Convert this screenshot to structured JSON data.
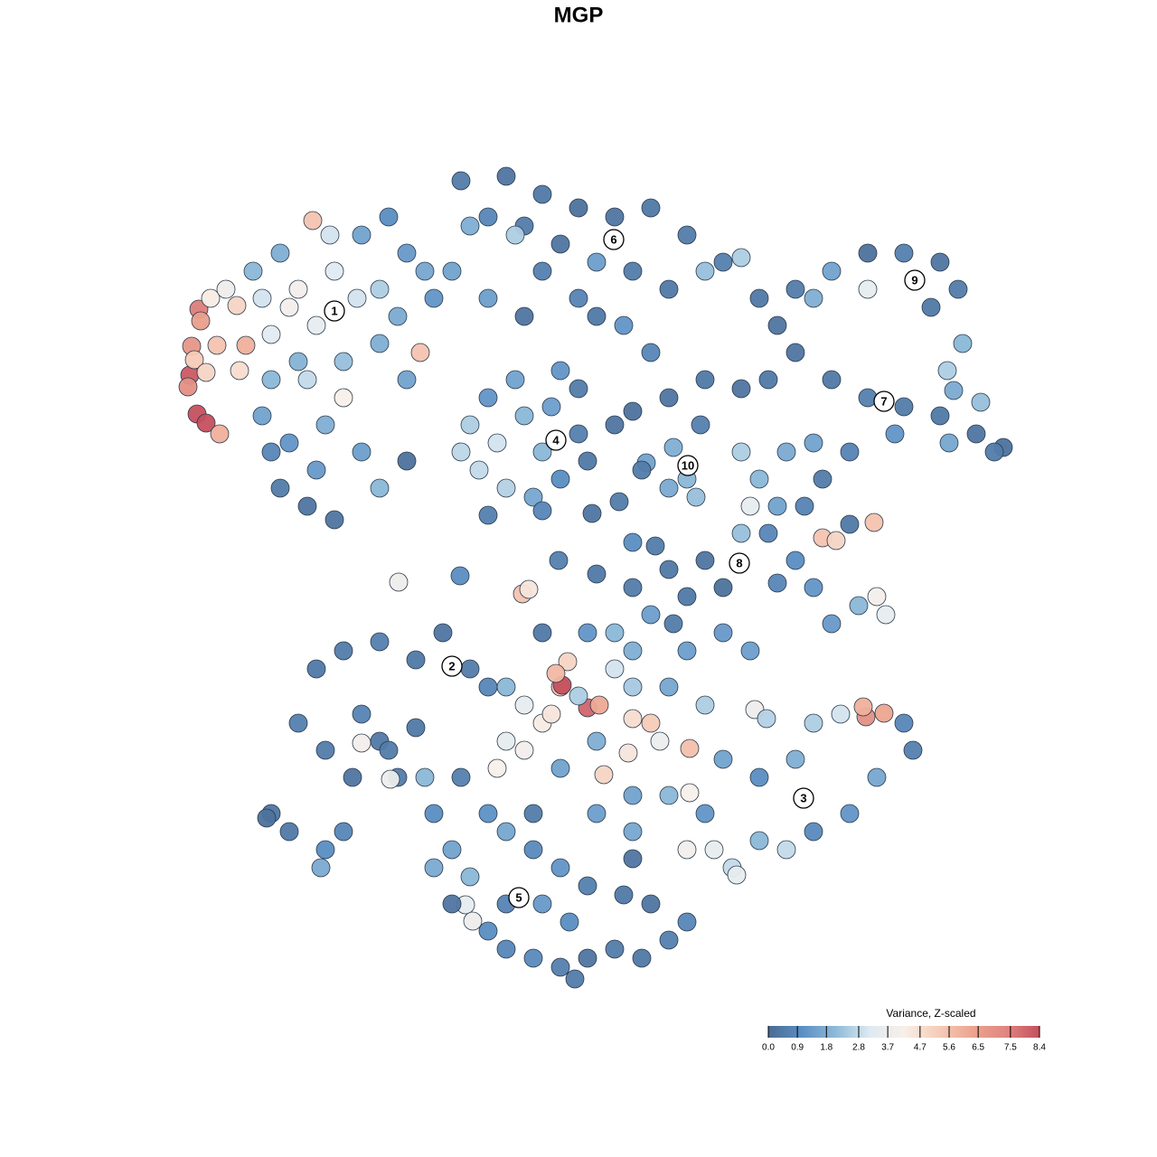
{
  "chart_data": {
    "type": "scatter",
    "title": "MGP",
    "xlim": [
      0,
      128
    ],
    "ylim": [
      0,
      128
    ],
    "colorbar_title": "Variance, Z-scaled",
    "clim": [
      0,
      8.4
    ],
    "colorscale": [
      "#4a6b93",
      "#5b8fc4",
      "#8fbbd9",
      "#dfeaf2",
      "#f8efe9",
      "#f6cdb9",
      "#eca58f",
      "#e08680",
      "#c5505e"
    ],
    "colorbar_ticks": [
      {
        "value": 0,
        "label": "0.0"
      },
      0.9,
      1.8,
      2.8,
      3.7,
      4.7,
      5.6,
      6.5,
      7.5,
      8.4
    ],
    "series": [
      {
        "x": [
          22,
          21.2,
          21,
          20.8,
          21.8,
          22.8,
          24.3,
          22.2,
          24,
          21.5,
          22.8,
          26.5,
          27.2,
          26.2,
          23.3,
          25,
          34.6,
          46.5,
          33,
          37,
          35,
          32,
          30,
          38,
          39.5,
          34,
          29,
          36.5,
          42,
          28,
          31,
          40,
          43,
          45,
          47,
          42,
          45,
          30,
          29,
          32,
          36,
          40,
          42,
          35,
          31,
          34,
          37,
          33,
          38,
          44,
          48,
          50,
          52,
          54,
          30,
          45,
          51,
          56,
          60,
          64,
          68,
          72,
          76,
          80,
          74,
          70,
          66,
          62,
          58,
          54,
          57,
          60,
          64,
          69,
          72,
          78,
          82,
          84,
          86,
          58,
          66,
          88,
          92,
          96,
          100,
          104,
          106,
          103,
          96,
          106.5,
          104.8,
          90,
          88,
          92,
          96,
          100,
          104,
          108,
          111,
          110,
          105,
          99,
          94,
          90,
          85,
          82,
          78,
          74,
          70,
          68,
          108.5,
          105.5,
          52,
          55,
          58,
          61,
          64,
          65,
          62,
          59,
          56,
          53,
          51,
          60,
          57,
          54,
          64,
          54,
          60,
          62,
          74.5,
          76,
          77,
          77.5,
          74,
          71.5,
          82,
          84,
          86,
          85,
          88,
          90,
          92,
          95,
          97,
          98,
          91,
          92.5,
          96.7,
          94,
          87,
          91,
          78,
          74,
          70,
          76,
          80,
          89,
          83,
          82,
          86,
          44.1,
          50.9,
          57.8,
          58.5,
          71,
          70,
          72.5,
          65.5,
          68.5,
          66,
          61.8,
          35,
          38,
          42,
          46,
          49,
          52,
          54,
          33,
          36,
          40,
          42,
          44,
          39,
          30,
          32,
          36,
          38,
          35.5,
          43,
          43.2,
          40,
          47,
          46,
          29.5,
          56,
          58,
          60,
          62,
          62.2,
          65,
          66.3,
          62.8,
          61.5,
          56,
          55,
          58,
          61,
          64,
          68,
          70,
          72,
          70,
          69.5,
          73,
          76.3,
          66.8,
          62,
          66,
          74,
          76,
          80,
          83,
          78,
          83.5,
          84.8,
          80,
          84,
          88,
          90,
          93,
          95.8,
          95.5,
          97.8,
          100,
          101,
          97,
          94,
          90,
          87,
          84,
          81,
          79,
          76,
          81.5,
          78,
          74,
          70,
          76.3,
          68,
          72,
          74.5,
          65,
          60,
          70,
          48,
          50,
          52,
          51.5,
          52.3,
          54,
          56,
          59,
          62,
          65,
          68,
          71,
          74,
          76,
          72,
          69,
          65,
          62,
          59,
          56,
          54,
          60,
          63,
          56,
          50,
          48,
          51,
          59,
          66,
          70,
          70,
          63.6
        ],
        "y": [
          93.8,
          89.7,
          86.5,
          85.2,
          82.2,
          81.2,
          80,
          92.5,
          89.8,
          88.2,
          86.8,
          87,
          89.8,
          94.2,
          95,
          96,
          103.6,
          89,
          96,
          98,
          92,
          94,
          91,
          84,
          95,
          86,
          95,
          102,
          96,
          98,
          100,
          102,
          104,
          100,
          98,
          90,
          86,
          86,
          82,
          79,
          81,
          78,
          74,
          76,
          74,
          72,
          70.5,
          88,
          88,
          93,
          95,
          98,
          103,
          95,
          78,
          77,
          108,
          108.5,
          106.5,
          105,
          104,
          105,
          102,
          99,
          96,
          98,
          99,
          101,
          103,
          104,
          102,
          98,
          95,
          92,
          89,
          98,
          99.5,
          95,
          92,
          93,
          93,
          96,
          98,
          96,
          100,
          99,
          96,
          94,
          100,
          90,
          87,
          95,
          89,
          86,
          84,
          83,
          82,
          80,
          78.5,
          78,
          79,
          80,
          78,
          79,
          86,
          85,
          86,
          84,
          82.5,
          81,
          83.5,
          84.8,
          81,
          79,
          82,
          83,
          80,
          77,
          75,
          73,
          74,
          76,
          78,
          78,
          86,
          84,
          85,
          71,
          71.5,
          87,
          78.5,
          75,
          73,
          81,
          74,
          76.8,
          78,
          75,
          72,
          69,
          66,
          63,
          59,
          61,
          62,
          60,
          68.5,
          68.2,
          70.2,
          70,
          78,
          75,
          66,
          65,
          63,
          62,
          63,
          72,
          72,
          69,
          63.5,
          63.6,
          64.3,
          62.3,
          62.8,
          76,
          68,
          67.6,
          71.2,
          72.5,
          64.5,
          66,
          54,
          56,
          57,
          55,
          58,
          54,
          52,
          48,
          45,
          49,
          46,
          42,
          42,
          38,
          36,
          34,
          36,
          32,
          45,
          41.8,
          45.8,
          42,
          47.5,
          37.5,
          52,
          50,
          48,
          52,
          52.2,
          49.7,
          50,
          54.8,
          53.5,
          46,
          43,
          45,
          49,
          51,
          54,
          52,
          48,
          48.5,
          44.7,
          46,
          45.2,
          42.3,
          43,
          46,
          52,
          56,
          58,
          56,
          50,
          49.5,
          48.5,
          44,
          42,
          44,
          48,
          49,
          48.7,
          49.8,
          49.1,
          48,
          45,
          42,
          38,
          36,
          34,
          35,
          32,
          34,
          34,
          31.2,
          38,
          40,
          40,
          40.3,
          58,
          60,
          59,
          58,
          58,
          56,
          38,
          34,
          31,
          27.9,
          26.1,
          25,
          23,
          22,
          21,
          22,
          23,
          22,
          24,
          26,
          28,
          29,
          30,
          32,
          34,
          36,
          38,
          28,
          26,
          28,
          28,
          32,
          42,
          38,
          38,
          36,
          33,
          19.7
        ],
        "values": [
          7.5,
          6.8,
          8.2,
          7,
          8.4,
          8.4,
          6,
          6.5,
          5.5,
          5.3,
          5,
          4.8,
          6,
          5,
          4.3,
          3.8,
          5.5,
          5.5,
          4,
          3.2,
          3.5,
          4,
          3.3,
          4.2,
          3,
          2.8,
          3,
          3,
          2.5,
          2,
          1.8,
          1.5,
          1,
          1.3,
          1.6,
          1.8,
          1.5,
          2,
          1.5,
          1.2,
          1.8,
          1.4,
          2,
          1.3,
          0.5,
          0.3,
          0.3,
          1.9,
          2.2,
          1.7,
          1.2,
          1.5,
          1.8,
          1.4,
          0.8,
          0.2,
          0.5,
          0.3,
          0.4,
          0.2,
          0.3,
          0.4,
          0.5,
          0.6,
          0.4,
          0.5,
          1.4,
          0.3,
          0.5,
          0.8,
          2.5,
          0.6,
          0.7,
          1.2,
          0.8,
          2.2,
          2.5,
          0.4,
          0.3,
          0.3,
          0.4,
          0.5,
          1.5,
          3.5,
          0.6,
          0.3,
          0.5,
          0.4,
          0.2,
          2,
          2.5,
          1.8,
          0.3,
          0.4,
          0.6,
          0.5,
          0.4,
          0.3,
          0.2,
          0.5,
          1.6,
          1.2,
          0.7,
          1.5,
          0.4,
          0.3,
          0.4,
          0.3,
          0.2,
          0.3,
          2.2,
          1.7,
          2.5,
          3,
          2,
          1.4,
          0.6,
          0.4,
          1,
          1.6,
          2.6,
          2.8,
          2.7,
          2,
          1.5,
          1.2,
          0.5,
          0.6,
          0.8,
          1.2,
          1.8,
          2,
          2.2,
          0.6,
          1.7,
          1.5,
          2.5,
          2,
          1.5,
          0.8,
          1,
          1.2,
          1.3,
          2,
          4,
          3.5,
          5.5,
          5,
          5.5,
          0.4,
          1.7,
          0.5,
          0.3,
          0.4,
          0.5,
          0.4,
          0.2,
          0.7,
          3.5,
          2.2,
          0.8,
          3.8,
          1,
          5.5,
          4.5,
          0.5,
          1,
          0.5,
          0.3,
          0.5,
          0.4,
          0.6,
          0.4,
          0.5,
          0.6,
          0.4,
          0.3,
          0.5,
          0.8,
          0.6,
          0.5,
          0.7,
          0.4,
          0.5,
          0.3,
          0.3,
          0.4,
          1,
          0.8,
          1.7,
          0.5,
          3.7,
          4,
          2,
          0.4,
          0.2,
          2,
          3.5,
          4.3,
          5.5,
          8.4,
          8,
          6.2,
          5,
          5.8,
          3.5,
          4.2,
          4,
          4.5,
          2.5,
          3,
          2.4,
          5.3,
          4.8,
          4.5,
          3.7,
          5.6,
          5,
          1.5,
          1.8,
          1.6,
          1.4,
          1.3,
          1.4,
          2.5,
          3.8,
          2.6,
          1.5,
          1,
          1.8,
          2.5,
          3,
          7,
          6,
          6.3,
          0.8,
          0.6,
          1.6,
          1.2,
          0.9,
          2.8,
          2,
          2.8,
          3.5,
          3.9,
          3.5,
          1.2,
          2,
          1.5,
          4.2,
          2,
          1.4,
          0.5,
          1.2,
          0.4,
          1.8,
          1,
          1.5,
          2,
          3.5,
          3.8,
          1,
          0.8,
          0.9,
          0.6,
          0.3,
          0.5,
          0.4,
          0.6,
          0.8,
          0.3,
          0.4,
          0.6,
          1.2,
          0.9,
          1.6,
          1.1,
          1.3,
          1,
          0.7,
          0.3,
          1.7,
          0.6,
          0.5,
          1.4,
          1.6,
          0.3,
          0.5
        ]
      }
    ],
    "annotations": [
      {
        "text": "1",
        "x": 37,
        "y": 93.6
      },
      {
        "text": "2",
        "x": 50,
        "y": 54.3
      },
      {
        "text": "3",
        "x": 88.9,
        "y": 39.7
      },
      {
        "text": "4",
        "x": 61.5,
        "y": 79.3
      },
      {
        "text": "5",
        "x": 57.4,
        "y": 28.7
      },
      {
        "text": "6",
        "x": 67.9,
        "y": 101.5
      },
      {
        "text": "7",
        "x": 97.8,
        "y": 83.6
      },
      {
        "text": "8",
        "x": 81.8,
        "y": 65.7
      },
      {
        "text": "9",
        "x": 101.2,
        "y": 97
      },
      {
        "text": "10",
        "x": 76.1,
        "y": 76.5
      }
    ]
  }
}
